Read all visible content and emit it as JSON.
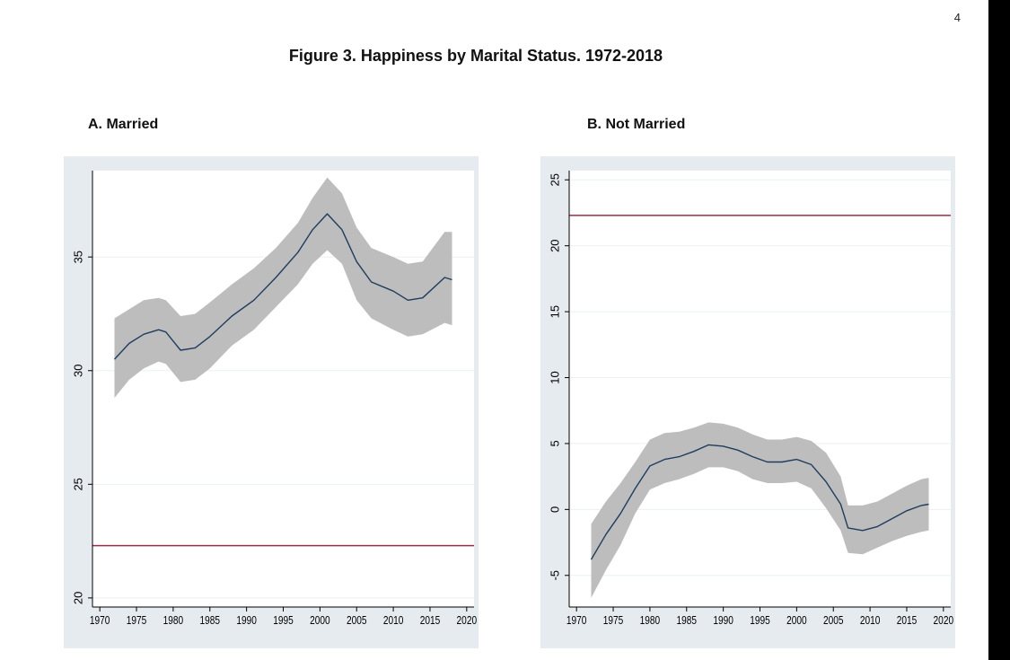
{
  "page_number": "4",
  "figure_title": "Figure 3.  Happiness by Marital Status. 1972-2018",
  "colors": {
    "frame": "#e5ebef",
    "plot_bg": "#ffffff",
    "grid": "#eaf0f4",
    "ci_band": "#bdbdbd",
    "line": "#1e3d5e",
    "reference": "#9b2d48"
  },
  "chart_data": [
    {
      "type": "line",
      "panel_title": "A.  Married",
      "xlabel": "",
      "ylabel": "",
      "xlim": [
        1969,
        2021
      ],
      "ylim": [
        19.6,
        38.8
      ],
      "x_ticks": [
        1970,
        1975,
        1980,
        1985,
        1990,
        1995,
        2000,
        2005,
        2010,
        2015,
        2020
      ],
      "y_ticks": [
        20,
        25,
        30,
        35
      ],
      "grid": true,
      "reference_line": 22.3,
      "series": [
        {
          "x": [
            1972,
            1974,
            1976,
            1978,
            1979,
            1981,
            1983,
            1985,
            1988,
            1991,
            1994,
            1997,
            1999,
            2001,
            2003,
            2005,
            2007,
            2010,
            2012,
            2014,
            2017,
            2018
          ],
          "y": [
            30.5,
            31.2,
            31.6,
            31.8,
            31.7,
            30.9,
            31.0,
            31.5,
            32.4,
            33.1,
            34.1,
            35.2,
            36.2,
            36.9,
            36.2,
            34.8,
            33.9,
            33.5,
            33.1,
            33.2,
            34.1,
            34.0
          ],
          "lower": [
            28.8,
            29.6,
            30.1,
            30.4,
            30.3,
            29.5,
            29.6,
            30.1,
            31.1,
            31.8,
            32.8,
            33.8,
            34.7,
            35.3,
            34.7,
            33.1,
            32.3,
            31.8,
            31.5,
            31.6,
            32.1,
            32.0
          ],
          "upper": [
            32.3,
            32.7,
            33.1,
            33.2,
            33.1,
            32.4,
            32.5,
            33.0,
            33.8,
            34.5,
            35.4,
            36.5,
            37.6,
            38.5,
            37.8,
            36.3,
            35.4,
            35.0,
            34.7,
            34.8,
            36.1,
            36.1
          ]
        }
      ]
    },
    {
      "type": "line",
      "panel_title": "B. Not Married",
      "xlabel": "",
      "ylabel": "",
      "xlim": [
        1969,
        2021
      ],
      "ylim": [
        -7.4,
        25.7
      ],
      "x_ticks": [
        1970,
        1975,
        1980,
        1985,
        1990,
        1995,
        2000,
        2005,
        2010,
        2015,
        2020
      ],
      "y_ticks": [
        -5,
        0,
        5,
        10,
        15,
        20,
        25
      ],
      "grid": true,
      "reference_line": 22.3,
      "series": [
        {
          "x": [
            1972,
            1974,
            1976,
            1978,
            1980,
            1982,
            1984,
            1986,
            1988,
            1990,
            1992,
            1994,
            1996,
            1998,
            2000,
            2002,
            2004,
            2006,
            2007,
            2009,
            2011,
            2013,
            2015,
            2017,
            2018
          ],
          "y": [
            -3.8,
            -1.9,
            -0.3,
            1.6,
            3.3,
            3.8,
            4.0,
            4.4,
            4.9,
            4.8,
            4.5,
            4.0,
            3.6,
            3.6,
            3.8,
            3.4,
            2.1,
            0.4,
            -1.4,
            -1.6,
            -1.3,
            -0.7,
            -0.1,
            0.3,
            0.4
          ],
          "lower": [
            -6.7,
            -4.6,
            -2.7,
            -0.3,
            1.5,
            2.0,
            2.3,
            2.7,
            3.2,
            3.2,
            2.9,
            2.3,
            2.0,
            2.0,
            2.1,
            1.6,
            0.1,
            -1.6,
            -3.3,
            -3.4,
            -2.9,
            -2.4,
            -2.0,
            -1.7,
            -1.6
          ],
          "upper": [
            -1.1,
            0.6,
            2.0,
            3.6,
            5.3,
            5.8,
            5.9,
            6.2,
            6.6,
            6.5,
            6.2,
            5.7,
            5.3,
            5.3,
            5.5,
            5.2,
            4.3,
            2.5,
            0.3,
            0.3,
            0.6,
            1.2,
            1.8,
            2.3,
            2.4
          ]
        }
      ]
    }
  ]
}
